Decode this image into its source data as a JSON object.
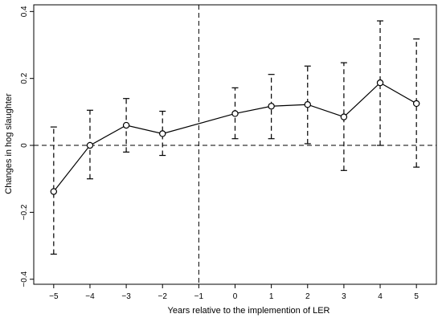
{
  "chart_data": {
    "type": "line",
    "title": "",
    "xlabel": "Years relative to the implemention of LER",
    "ylabel": "Changes in hog slaughter",
    "x": [
      -5,
      -4,
      -3,
      -2,
      0,
      1,
      2,
      3,
      4,
      5
    ],
    "x_ticks": [
      -5,
      -4,
      -3,
      -2,
      -1,
      0,
      1,
      2,
      3,
      4,
      5
    ],
    "x_tick_labels": [
      "−5",
      "−4",
      "−3",
      "−2",
      "−1",
      "0",
      "1",
      "2",
      "3",
      "4",
      "5"
    ],
    "y_ticks": [
      -0.4,
      -0.2,
      0,
      0.2,
      0.4
    ],
    "y_tick_labels": [
      "−0.4",
      "−0.2",
      "0",
      "0.2",
      "0.4"
    ],
    "xlim": [
      -5.55,
      5.55
    ],
    "ylim": [
      -0.415,
      0.42
    ],
    "series": [
      {
        "values": [
          -0.138,
          0.0,
          0.06,
          0.035,
          0.095,
          0.117,
          0.122,
          0.085,
          0.187,
          0.125
        ],
        "ci_lower": [
          -0.325,
          -0.1,
          -0.02,
          -0.03,
          0.02,
          0.02,
          0.005,
          -0.075,
          0.0,
          -0.065
        ],
        "ci_upper": [
          0.055,
          0.105,
          0.14,
          0.102,
          0.172,
          0.212,
          0.237,
          0.247,
          0.372,
          0.318
        ]
      }
    ],
    "reference_lines": {
      "horizontal_y": 0,
      "vertical_x": -1
    },
    "grid": false,
    "legend": "none",
    "colors": {
      "line": "#000000",
      "background": "#ffffff"
    }
  }
}
